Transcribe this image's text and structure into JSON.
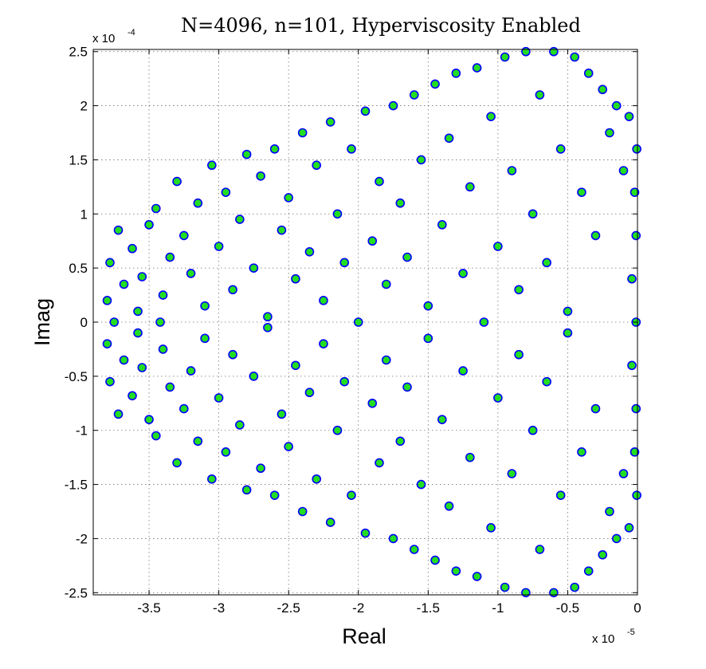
{
  "chart_data": {
    "type": "scatter",
    "title": "N=4096, n=101, Hyperviscosity Enabled",
    "xlabel": "Real",
    "ylabel": "Imag",
    "x_multiplier": "x 10",
    "x_multiplier_exp": "-5",
    "y_multiplier": "x 10",
    "y_multiplier_exp": "-4",
    "xlim": [
      -3.9,
      0
    ],
    "ylim": [
      -2.52,
      2.52
    ],
    "x_ticks": [
      -3.5,
      -3,
      -2.5,
      -2,
      -1.5,
      -1,
      -0.5,
      0
    ],
    "x_tick_labels": [
      "-3.5",
      "-3",
      "-2.5",
      "-2",
      "-1.5",
      "-1",
      "-0.5",
      "0"
    ],
    "y_ticks": [
      -2.5,
      -2,
      -1.5,
      -1,
      -0.5,
      0,
      0.5,
      1,
      1.5,
      2,
      2.5
    ],
    "y_tick_labels": [
      "-2.5",
      "-2",
      "-1.5",
      "-1",
      "-0.5",
      "0",
      "0.5",
      "1",
      "1.5",
      "2",
      "2.5"
    ],
    "grid": true,
    "marker": {
      "shape": "circle",
      "fill": "#22dd22",
      "edge": "#0000ff"
    },
    "series": [
      {
        "points": [
          [
            -3.8,
            0.2
          ],
          [
            -3.8,
            -0.2
          ],
          [
            -3.78,
            0.55
          ],
          [
            -3.78,
            -0.55
          ],
          [
            -3.75,
            0.0
          ],
          [
            -3.72,
            0.85
          ],
          [
            -3.72,
            -0.85
          ],
          [
            -3.68,
            0.35
          ],
          [
            -3.68,
            -0.35
          ],
          [
            -3.62,
            0.68
          ],
          [
            -3.62,
            -0.68
          ],
          [
            -3.58,
            0.1
          ],
          [
            -3.58,
            -0.1
          ],
          [
            -3.55,
            0.42
          ],
          [
            -3.55,
            -0.42
          ],
          [
            -3.5,
            0.9
          ],
          [
            -3.5,
            -0.9
          ],
          [
            -3.45,
            1.05
          ],
          [
            -3.45,
            -1.05
          ],
          [
            -3.42,
            0.0
          ],
          [
            -3.4,
            0.25
          ],
          [
            -3.4,
            -0.25
          ],
          [
            -3.35,
            0.6
          ],
          [
            -3.35,
            -0.6
          ],
          [
            -3.3,
            1.3
          ],
          [
            -3.3,
            -1.3
          ],
          [
            -3.25,
            0.8
          ],
          [
            -3.25,
            -0.8
          ],
          [
            -3.2,
            0.45
          ],
          [
            -3.2,
            -0.45
          ],
          [
            -3.15,
            1.1
          ],
          [
            -3.15,
            -1.1
          ],
          [
            -3.1,
            0.15
          ],
          [
            -3.1,
            -0.15
          ],
          [
            -3.05,
            1.45
          ],
          [
            -3.05,
            -1.45
          ],
          [
            -3.0,
            0.7
          ],
          [
            -3.0,
            -0.7
          ],
          [
            -2.95,
            1.2
          ],
          [
            -2.95,
            -1.2
          ],
          [
            -2.9,
            0.3
          ],
          [
            -2.9,
            -0.3
          ],
          [
            -2.85,
            0.95
          ],
          [
            -2.85,
            -0.95
          ],
          [
            -2.8,
            1.55
          ],
          [
            -2.8,
            -1.55
          ],
          [
            -2.75,
            0.5
          ],
          [
            -2.75,
            -0.5
          ],
          [
            -2.7,
            1.35
          ],
          [
            -2.7,
            -1.35
          ],
          [
            -2.65,
            0.05
          ],
          [
            -2.65,
            -0.05
          ],
          [
            -2.6,
            1.6
          ],
          [
            -2.6,
            -1.6
          ],
          [
            -2.55,
            0.85
          ],
          [
            -2.55,
            -0.85
          ],
          [
            -2.5,
            1.15
          ],
          [
            -2.5,
            -1.15
          ],
          [
            -2.45,
            0.4
          ],
          [
            -2.45,
            -0.4
          ],
          [
            -2.4,
            1.75
          ],
          [
            -2.4,
            -1.75
          ],
          [
            -2.35,
            0.65
          ],
          [
            -2.35,
            -0.65
          ],
          [
            -2.3,
            1.45
          ],
          [
            -2.3,
            -1.45
          ],
          [
            -2.25,
            0.2
          ],
          [
            -2.25,
            -0.2
          ],
          [
            -2.2,
            1.85
          ],
          [
            -2.2,
            -1.85
          ],
          [
            -2.15,
            1.0
          ],
          [
            -2.15,
            -1.0
          ],
          [
            -2.1,
            0.55
          ],
          [
            -2.1,
            -0.55
          ],
          [
            -2.05,
            1.6
          ],
          [
            -2.05,
            -1.6
          ],
          [
            -2.0,
            0.0
          ],
          [
            -1.95,
            1.95
          ],
          [
            -1.95,
            -1.95
          ],
          [
            -1.9,
            0.75
          ],
          [
            -1.9,
            -0.75
          ],
          [
            -1.85,
            1.3
          ],
          [
            -1.85,
            -1.3
          ],
          [
            -1.8,
            0.35
          ],
          [
            -1.8,
            -0.35
          ],
          [
            -1.75,
            2.0
          ],
          [
            -1.75,
            -2.0
          ],
          [
            -1.7,
            1.1
          ],
          [
            -1.7,
            -1.1
          ],
          [
            -1.65,
            0.6
          ],
          [
            -1.65,
            -0.6
          ],
          [
            -1.6,
            2.1
          ],
          [
            -1.6,
            -2.1
          ],
          [
            -1.55,
            1.5
          ],
          [
            -1.55,
            -1.5
          ],
          [
            -1.5,
            0.15
          ],
          [
            -1.5,
            -0.15
          ],
          [
            -1.45,
            2.2
          ],
          [
            -1.45,
            -2.2
          ],
          [
            -1.4,
            0.9
          ],
          [
            -1.4,
            -0.9
          ],
          [
            -1.35,
            1.7
          ],
          [
            -1.35,
            -1.7
          ],
          [
            -1.3,
            2.3
          ],
          [
            -1.3,
            -2.3
          ],
          [
            -1.25,
            0.45
          ],
          [
            -1.25,
            -0.45
          ],
          [
            -1.2,
            1.25
          ],
          [
            -1.2,
            -1.25
          ],
          [
            -1.15,
            2.35
          ],
          [
            -1.15,
            -2.35
          ],
          [
            -1.1,
            0.0
          ],
          [
            -1.05,
            1.9
          ],
          [
            -1.05,
            -1.9
          ],
          [
            -1.0,
            0.7
          ],
          [
            -1.0,
            -0.7
          ],
          [
            -0.95,
            2.45
          ],
          [
            -0.95,
            -2.45
          ],
          [
            -0.9,
            1.4
          ],
          [
            -0.9,
            -1.4
          ],
          [
            -0.85,
            0.3
          ],
          [
            -0.85,
            -0.3
          ],
          [
            -0.8,
            2.5
          ],
          [
            -0.8,
            -2.5
          ],
          [
            -0.75,
            1.0
          ],
          [
            -0.75,
            -1.0
          ],
          [
            -0.7,
            2.1
          ],
          [
            -0.7,
            -2.1
          ],
          [
            -0.65,
            0.55
          ],
          [
            -0.65,
            -0.55
          ],
          [
            -0.6,
            2.5
          ],
          [
            -0.6,
            -2.5
          ],
          [
            -0.55,
            1.6
          ],
          [
            -0.55,
            -1.6
          ],
          [
            -0.5,
            0.1
          ],
          [
            -0.5,
            -0.1
          ],
          [
            -0.45,
            2.45
          ],
          [
            -0.45,
            -2.45
          ],
          [
            -0.4,
            1.2
          ],
          [
            -0.4,
            -1.2
          ],
          [
            -0.35,
            2.3
          ],
          [
            -0.35,
            -2.3
          ],
          [
            -0.3,
            0.8
          ],
          [
            -0.3,
            -0.8
          ],
          [
            -0.25,
            2.15
          ],
          [
            -0.25,
            -2.15
          ],
          [
            -0.2,
            1.75
          ],
          [
            -0.2,
            -1.75
          ],
          [
            -0.15,
            2.0
          ],
          [
            -0.15,
            -2.0
          ],
          [
            -0.1,
            1.4
          ],
          [
            -0.1,
            -1.4
          ],
          [
            -0.06,
            1.9
          ],
          [
            -0.06,
            -1.9
          ],
          [
            -0.04,
            0.4
          ],
          [
            -0.04,
            -0.4
          ],
          [
            -0.02,
            1.2
          ],
          [
            -0.02,
            -1.2
          ],
          [
            -0.01,
            0.0
          ],
          [
            -0.01,
            0.8
          ],
          [
            -0.01,
            -0.8
          ],
          [
            -0.005,
            1.6
          ],
          [
            -0.005,
            -1.6
          ]
        ]
      }
    ]
  }
}
